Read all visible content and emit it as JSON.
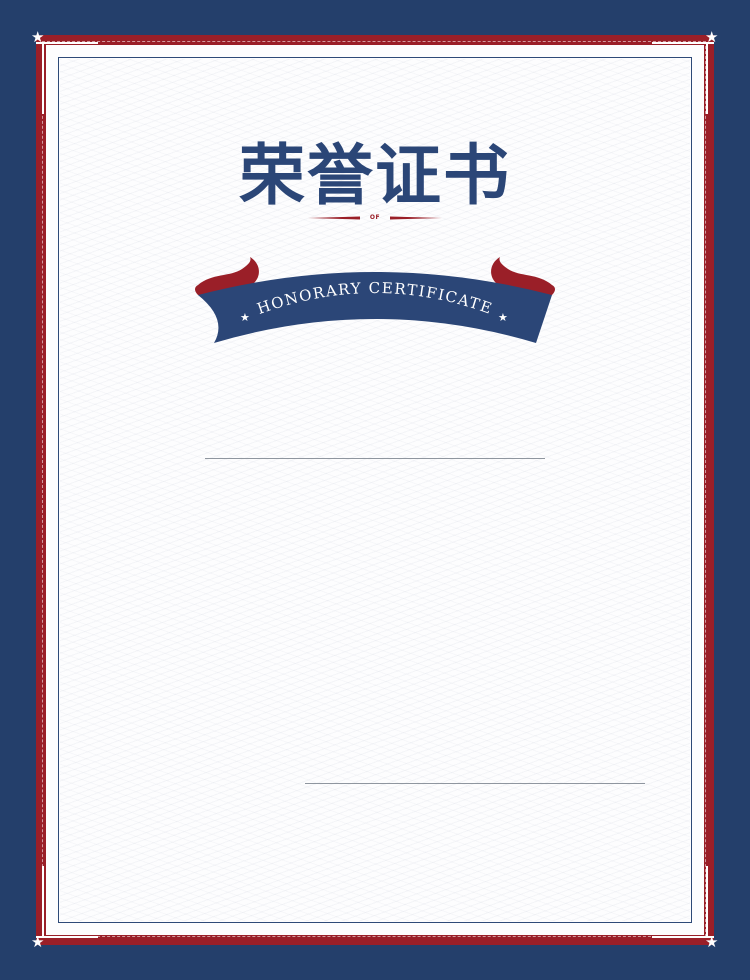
{
  "certificate": {
    "title": "荣誉证书",
    "divider_text": "OF",
    "ribbon_text": "HONORARY CERTIFICATE"
  },
  "colors": {
    "background": "#243f6b",
    "accent_red": "#9a1f28",
    "title_blue": "#2b4677",
    "paper": "#fdfdfe"
  },
  "icons": {
    "corner": "star-icon",
    "ribbon_star": "star-icon"
  }
}
